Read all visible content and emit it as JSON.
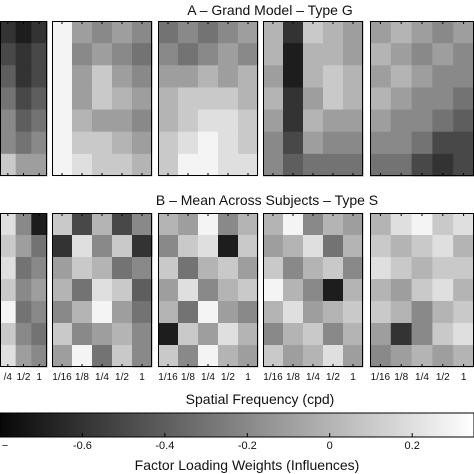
{
  "titles": {
    "row_a": "A – Grand Model – Type G",
    "row_b": "B – Mean Across Subjects – Type S"
  },
  "x_axis": {
    "label": "Spatial Frequency (cpd)",
    "ticks": [
      "1/16",
      "1/8",
      "1/4",
      "1/2",
      "1"
    ],
    "ticks_cut_panel": [
      "/4",
      "1/2",
      "1"
    ]
  },
  "colorbar": {
    "label": "Factor Loading Weights (Influences)",
    "range": [
      -0.8,
      0.35
    ],
    "ticks": [
      "-0.6",
      "-0.4",
      "-0.2",
      "0",
      "0.2"
    ],
    "tick_values": [
      -0.6,
      -0.4,
      -0.2,
      0,
      0.2
    ],
    "cut_tick": "−"
  },
  "chart_data": {
    "type": "heatmap",
    "colormap": "gray",
    "value_range": [
      -0.8,
      0.35
    ],
    "row_A": [
      {
        "panel": 1,
        "cells": [
          [
            -0.6,
            -0.7,
            -0.6
          ],
          [
            -0.5,
            -0.6,
            -0.5
          ],
          [
            -0.4,
            -0.6,
            -0.5
          ],
          [
            -0.3,
            -0.5,
            -0.4
          ],
          [
            -0.2,
            -0.4,
            -0.3
          ],
          [
            -0.2,
            -0.3,
            -0.2
          ],
          [
            0.1,
            -0.1,
            -0.1
          ]
        ]
      },
      {
        "panel": 2,
        "cells": [
          [
            0.3,
            -0.1,
            -0.2,
            -0.1,
            -0.2
          ],
          [
            0.3,
            -0.2,
            -0.1,
            -0.2,
            -0.3
          ],
          [
            0.3,
            -0.1,
            0.1,
            -0.1,
            -0.2
          ],
          [
            0.3,
            -0.1,
            0.1,
            0.0,
            -0.1
          ],
          [
            0.3,
            0.0,
            -0.1,
            -0.1,
            -0.2
          ],
          [
            0.3,
            0.1,
            0.1,
            0.0,
            -0.1
          ],
          [
            0.3,
            0.2,
            0.1,
            0.1,
            0.0
          ]
        ]
      },
      {
        "panel": 3,
        "cells": [
          [
            -0.3,
            -0.2,
            -0.3,
            -0.2,
            -0.1
          ],
          [
            -0.2,
            -0.3,
            -0.2,
            -0.1,
            -0.2
          ],
          [
            -0.1,
            -0.1,
            0.0,
            -0.1,
            0.0
          ],
          [
            0.0,
            0.1,
            0.1,
            0.1,
            0.0
          ],
          [
            0.0,
            0.1,
            0.2,
            0.2,
            0.1
          ],
          [
            0.1,
            0.2,
            0.3,
            0.2,
            0.1
          ],
          [
            0.1,
            0.3,
            0.3,
            0.2,
            0.2
          ]
        ]
      },
      {
        "panel": 4,
        "cells": [
          [
            0.0,
            -0.6,
            0.1,
            0.0,
            -0.1
          ],
          [
            0.0,
            -0.7,
            0.0,
            0.0,
            -0.1
          ],
          [
            -0.1,
            -0.7,
            0.0,
            0.1,
            0.0
          ],
          [
            0.0,
            -0.6,
            -0.1,
            0.1,
            0.0
          ],
          [
            -0.1,
            -0.6,
            0.0,
            -0.1,
            -0.1
          ],
          [
            -0.2,
            -0.5,
            -0.1,
            -0.2,
            -0.2
          ],
          [
            -0.2,
            -0.4,
            -0.3,
            -0.3,
            -0.3
          ]
        ]
      },
      {
        "panel": 5,
        "cells": [
          [
            -0.1,
            0.0,
            -0.1,
            -0.2,
            -0.1
          ],
          [
            0.0,
            -0.1,
            -0.2,
            -0.1,
            -0.2
          ],
          [
            -0.1,
            0.0,
            -0.1,
            -0.2,
            -0.2
          ],
          [
            0.0,
            -0.1,
            -0.2,
            -0.2,
            -0.3
          ],
          [
            -0.1,
            -0.2,
            -0.2,
            -0.3,
            -0.4
          ],
          [
            -0.2,
            -0.2,
            -0.3,
            -0.5,
            -0.5
          ],
          [
            -0.3,
            -0.3,
            -0.5,
            -0.6,
            -0.5
          ]
        ]
      }
    ],
    "row_B": [
      {
        "panel": 1,
        "cells": [
          [
            0.2,
            -0.2,
            -0.7
          ],
          [
            0.1,
            -0.1,
            -0.3
          ],
          [
            0.2,
            -0.3,
            -0.2
          ],
          [
            0.1,
            -0.2,
            -0.1
          ],
          [
            0.3,
            -0.3,
            -0.2
          ],
          [
            0.1,
            -0.2,
            -0.3
          ],
          [
            0.2,
            -0.1,
            -0.2
          ]
        ]
      },
      {
        "panel": 2,
        "cells": [
          [
            0.1,
            -0.5,
            0.0,
            -0.5,
            -0.2
          ],
          [
            -0.6,
            0.2,
            -0.2,
            0.1,
            -0.6
          ],
          [
            -0.1,
            0.1,
            0.0,
            -0.3,
            -0.2
          ],
          [
            0.0,
            -0.3,
            0.2,
            0.1,
            -0.4
          ],
          [
            -0.2,
            0.0,
            0.3,
            -0.1,
            -0.3
          ],
          [
            0.1,
            -0.2,
            -0.1,
            0.0,
            -0.2
          ],
          [
            -0.1,
            0.3,
            -0.3,
            0.1,
            -0.2
          ]
        ]
      },
      {
        "panel": 3,
        "cells": [
          [
            0.0,
            -0.1,
            0.3,
            -0.2,
            0.0
          ],
          [
            -0.2,
            0.1,
            0.2,
            -0.7,
            0.1
          ],
          [
            0.1,
            -0.3,
            0.0,
            0.1,
            -0.1
          ],
          [
            -0.1,
            0.2,
            -0.2,
            0.0,
            0.1
          ],
          [
            0.0,
            -0.3,
            0.3,
            -0.1,
            -0.2
          ],
          [
            -0.7,
            0.1,
            -0.1,
            0.2,
            0.0
          ],
          [
            0.1,
            -0.2,
            0.3,
            0.0,
            -0.1
          ]
        ]
      },
      {
        "panel": 4,
        "cells": [
          [
            0.0,
            0.3,
            -0.2,
            0.0,
            -0.1
          ],
          [
            -0.1,
            0.0,
            0.2,
            -0.3,
            0.0
          ],
          [
            0.1,
            -0.2,
            0.0,
            0.1,
            -0.2
          ],
          [
            0.3,
            0.0,
            -0.2,
            -0.7,
            0.0
          ],
          [
            0.0,
            0.2,
            -0.1,
            0.0,
            0.1
          ],
          [
            -0.2,
            0.0,
            0.1,
            -0.2,
            0.0
          ],
          [
            0.1,
            -0.1,
            0.0,
            0.2,
            -0.1
          ]
        ]
      },
      {
        "panel": 5,
        "cells": [
          [
            0.0,
            0.2,
            0.3,
            0.1,
            0.2
          ],
          [
            0.1,
            0.0,
            0.1,
            0.2,
            0.0
          ],
          [
            0.2,
            0.1,
            0.0,
            0.1,
            0.1
          ],
          [
            0.0,
            -0.1,
            0.1,
            0.2,
            0.0
          ],
          [
            0.1,
            0.0,
            -0.2,
            0.0,
            0.1
          ],
          [
            -0.1,
            -0.6,
            -0.2,
            0.1,
            0.2
          ],
          [
            -0.2,
            -0.1,
            0.0,
            -0.1,
            0.0
          ]
        ]
      }
    ]
  }
}
